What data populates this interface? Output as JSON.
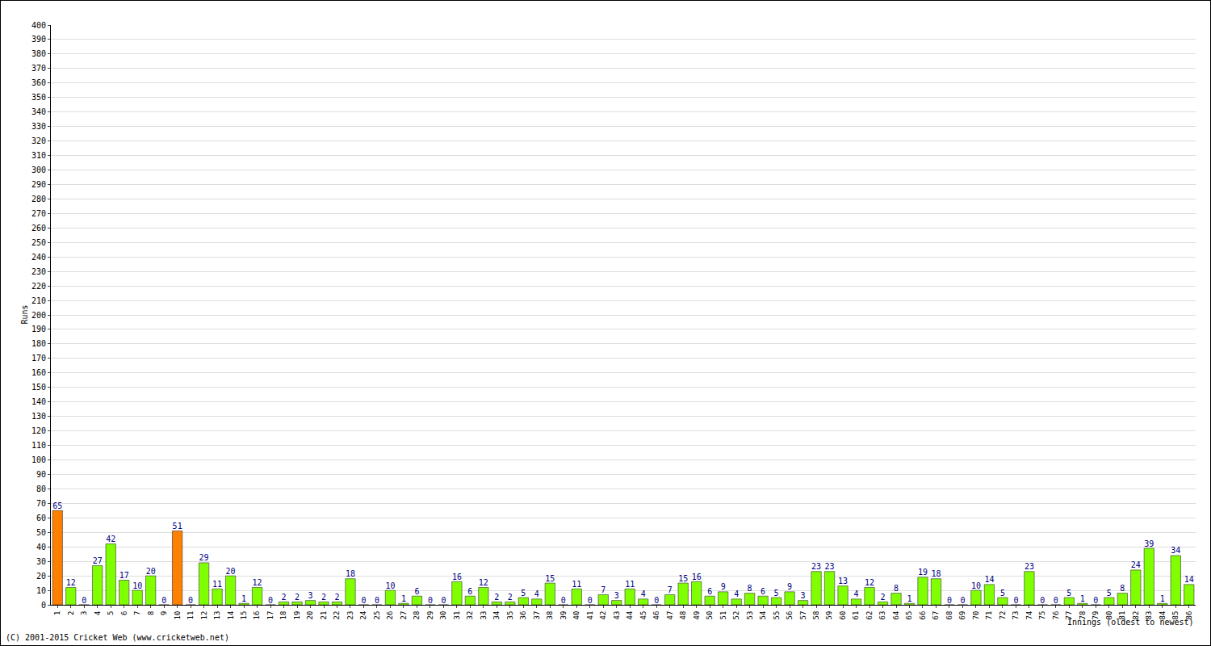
{
  "chart_data": {
    "type": "bar",
    "x_label": "Innings (oldest to newest)",
    "y_label": "Runs",
    "annotations": [
      "(C) 2001-2015 Cricket Web (www.cricketweb.net)"
    ],
    "categories": [
      "1",
      "2",
      "3",
      "4",
      "5",
      "6",
      "7",
      "8",
      "9",
      "10",
      "11",
      "12",
      "13",
      "14",
      "15",
      "16",
      "17",
      "18",
      "19",
      "20",
      "21",
      "22",
      "23",
      "24",
      "25",
      "26",
      "27",
      "28",
      "29",
      "30",
      "31",
      "32",
      "33",
      "34",
      "35",
      "36",
      "37",
      "38",
      "39",
      "40",
      "41",
      "42",
      "43",
      "44",
      "45",
      "46",
      "47",
      "48",
      "49",
      "50",
      "51",
      "52",
      "53",
      "54",
      "55",
      "56",
      "57",
      "58",
      "59",
      "60",
      "61",
      "62",
      "63",
      "64",
      "65",
      "66",
      "67",
      "68",
      "69",
      "70",
      "71",
      "72",
      "73",
      "74",
      "75",
      "76",
      "77",
      "78",
      "79",
      "80",
      "81",
      "82",
      "83",
      "84",
      "85",
      "86"
    ],
    "values": [
      65,
      12,
      0,
      27,
      42,
      17,
      10,
      20,
      0,
      51,
      0,
      29,
      11,
      20,
      1,
      12,
      0,
      2,
      2,
      3,
      2,
      2,
      18,
      0,
      0,
      10,
      1,
      6,
      0,
      0,
      16,
      6,
      12,
      2,
      2,
      5,
      4,
      15,
      0,
      11,
      0,
      7,
      3,
      11,
      4,
      0,
      7,
      15,
      16,
      6,
      9,
      4,
      8,
      6,
      5,
      9,
      3,
      23,
      23,
      13,
      4,
      12,
      2,
      8,
      1,
      19,
      18,
      0,
      0,
      10,
      14,
      5,
      0,
      23,
      0,
      0,
      5,
      1,
      0,
      5,
      8,
      24,
      39,
      1,
      34,
      14
    ],
    "colors": [
      "#ff8000",
      "#80ff00",
      "#80ff00",
      "#80ff00",
      "#80ff00",
      "#80ff00",
      "#80ff00",
      "#80ff00",
      "#80ff00",
      "#ff8000",
      "#80ff00",
      "#80ff00",
      "#80ff00",
      "#80ff00",
      "#80ff00",
      "#80ff00",
      "#80ff00",
      "#80ff00",
      "#80ff00",
      "#80ff00",
      "#80ff00",
      "#80ff00",
      "#80ff00",
      "#80ff00",
      "#80ff00",
      "#80ff00",
      "#80ff00",
      "#80ff00",
      "#80ff00",
      "#80ff00",
      "#80ff00",
      "#80ff00",
      "#80ff00",
      "#80ff00",
      "#80ff00",
      "#80ff00",
      "#80ff00",
      "#80ff00",
      "#80ff00",
      "#80ff00",
      "#80ff00",
      "#80ff00",
      "#80ff00",
      "#80ff00",
      "#80ff00",
      "#80ff00",
      "#80ff00",
      "#80ff00",
      "#80ff00",
      "#80ff00",
      "#80ff00",
      "#80ff00",
      "#80ff00",
      "#80ff00",
      "#80ff00",
      "#80ff00",
      "#80ff00",
      "#80ff00",
      "#80ff00",
      "#80ff00",
      "#80ff00",
      "#80ff00",
      "#80ff00",
      "#80ff00",
      "#80ff00",
      "#80ff00",
      "#80ff00",
      "#80ff00",
      "#80ff00",
      "#80ff00",
      "#80ff00",
      "#80ff00",
      "#80ff00",
      "#80ff00",
      "#80ff00",
      "#80ff00",
      "#80ff00",
      "#80ff00",
      "#80ff00",
      "#80ff00",
      "#80ff00",
      "#80ff00",
      "#80ff00",
      "#80ff00",
      "#80ff00",
      "#80ff00"
    ],
    "ylim": [
      0,
      400
    ],
    "yticks": [
      0,
      10,
      20,
      30,
      40,
      50,
      60,
      70,
      80,
      90,
      100,
      110,
      120,
      130,
      140,
      150,
      160,
      170,
      180,
      190,
      200,
      210,
      220,
      230,
      240,
      250,
      260,
      270,
      280,
      290,
      300,
      310,
      320,
      330,
      340,
      350,
      360,
      370,
      380,
      390,
      400
    ],
    "grid": true,
    "data_labels": true
  }
}
